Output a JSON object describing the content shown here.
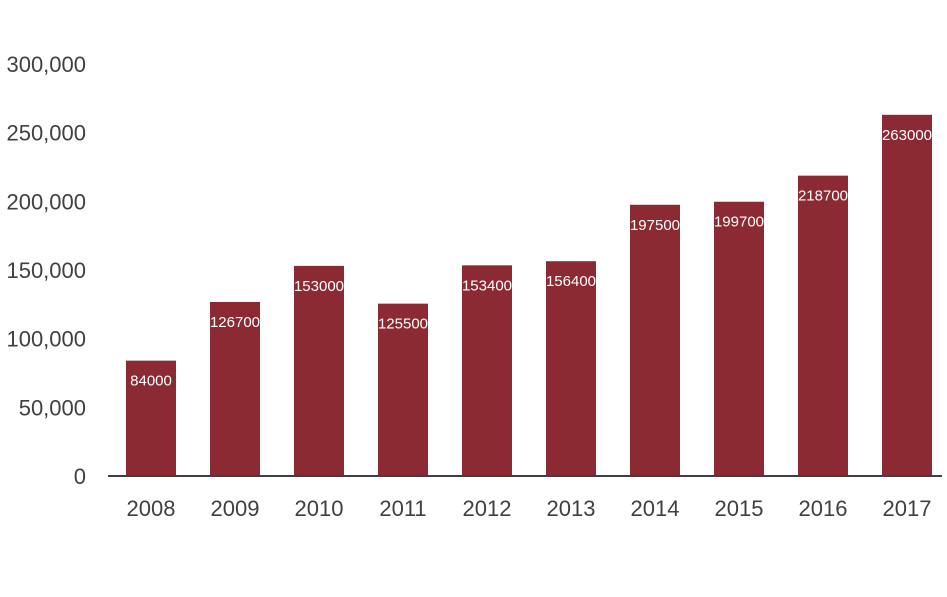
{
  "chart_data": {
    "type": "bar",
    "title": "",
    "xlabel": "",
    "ylabel": "",
    "categories": [
      "2008",
      "2009",
      "2010",
      "2011",
      "2012",
      "2013",
      "2014",
      "2015",
      "2016",
      "2017"
    ],
    "values": [
      84000,
      126700,
      153000,
      125500,
      153400,
      156400,
      197500,
      199700,
      218700,
      263000
    ],
    "data_labels": [
      "84000",
      "126700",
      "153000",
      "125500",
      "153400",
      "156400",
      "197500",
      "199700",
      "218700",
      "263000"
    ],
    "ylim": [
      0,
      300000
    ],
    "y_ticks": [
      0,
      50000,
      100000,
      150000,
      200000,
      250000,
      300000
    ],
    "y_tick_labels": [
      "0",
      "50,000",
      "100,000",
      "150,000",
      "200,000",
      "250,000",
      "300,000"
    ],
    "grid": false,
    "legend": "none",
    "colors": {
      "bar": "#8b2a33",
      "axis": "#404040",
      "tick_text": "#404040",
      "data_label": "#ffffff"
    }
  }
}
